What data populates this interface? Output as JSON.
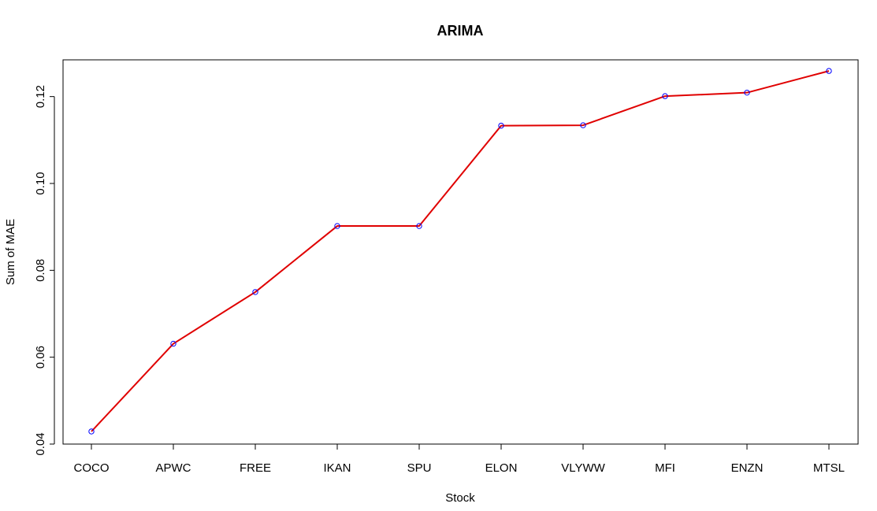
{
  "chart_data": {
    "type": "line",
    "title": "ARIMA",
    "xlabel": "Stock",
    "ylabel": "Sum of MAE",
    "categories": [
      "COCO",
      "APWC",
      "FREE",
      "IKAN",
      "SPU",
      "ELON",
      "VLYWW",
      "MFI",
      "ENZN",
      "MTSL"
    ],
    "series": [
      {
        "values": [
          0.0429,
          0.0631,
          0.075,
          0.0902,
          0.0902,
          0.1133,
          0.1134,
          0.1201,
          0.1209,
          0.1259
        ],
        "line_color": "#e00000",
        "point_color": "#0000ff"
      }
    ],
    "ylim": [
      0.04,
      0.129
    ],
    "yticks": [
      0.04,
      0.06,
      0.08,
      0.1,
      0.12
    ],
    "ytick_labels": [
      "0.04",
      "0.06",
      "0.08",
      "0.10",
      "0.12"
    ],
    "grid": false,
    "legend": "none"
  }
}
